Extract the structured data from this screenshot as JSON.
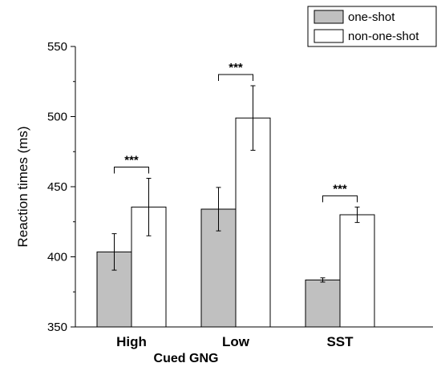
{
  "chart_data": {
    "type": "bar",
    "categories": [
      "High",
      "Low",
      "SST"
    ],
    "group_label": "Cued GNG",
    "ylabel": "Reaction times (ms)",
    "ylim": [
      350,
      550
    ],
    "yticks": [
      350,
      400,
      450,
      500,
      550
    ],
    "series": [
      {
        "name": "one-shot",
        "color": "#c0c0c0",
        "values": [
          403.5,
          434,
          383.5
        ],
        "errors": [
          13,
          15.5,
          1.5
        ]
      },
      {
        "name": "non-one-shot",
        "color": "#ffffff",
        "values": [
          435.5,
          499,
          430
        ],
        "errors": [
          20.5,
          23,
          5.5
        ]
      }
    ],
    "significance": [
      {
        "category": "High",
        "label": "***"
      },
      {
        "category": "Low",
        "label": "***"
      },
      {
        "category": "SST",
        "label": "***"
      }
    ],
    "legend_position": "top-right",
    "grid": false
  }
}
